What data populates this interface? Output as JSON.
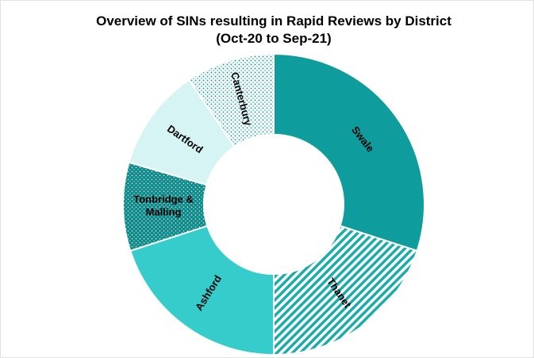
{
  "chart_data": {
    "type": "donut",
    "title": "Overview of SINs resulting in Rapid Reviews by District",
    "subtitle": "(Oct-20 to Sep-21)",
    "categories": [
      "Swale",
      "Thanet",
      "Ashford",
      "Tonbridge & Malling",
      "Dartford",
      "Canterbury"
    ],
    "values": [
      30,
      20,
      20,
      9.5,
      11,
      9.5
    ],
    "colors": [
      "#0f9c9c",
      "#1aabab",
      "#36cccc",
      "#0c8a8a",
      "#d6f4f4",
      "#1e9f9f"
    ],
    "patterns": [
      "solid",
      "stripes",
      "solid",
      "dots-dark",
      "solid",
      "dots-light"
    ]
  }
}
